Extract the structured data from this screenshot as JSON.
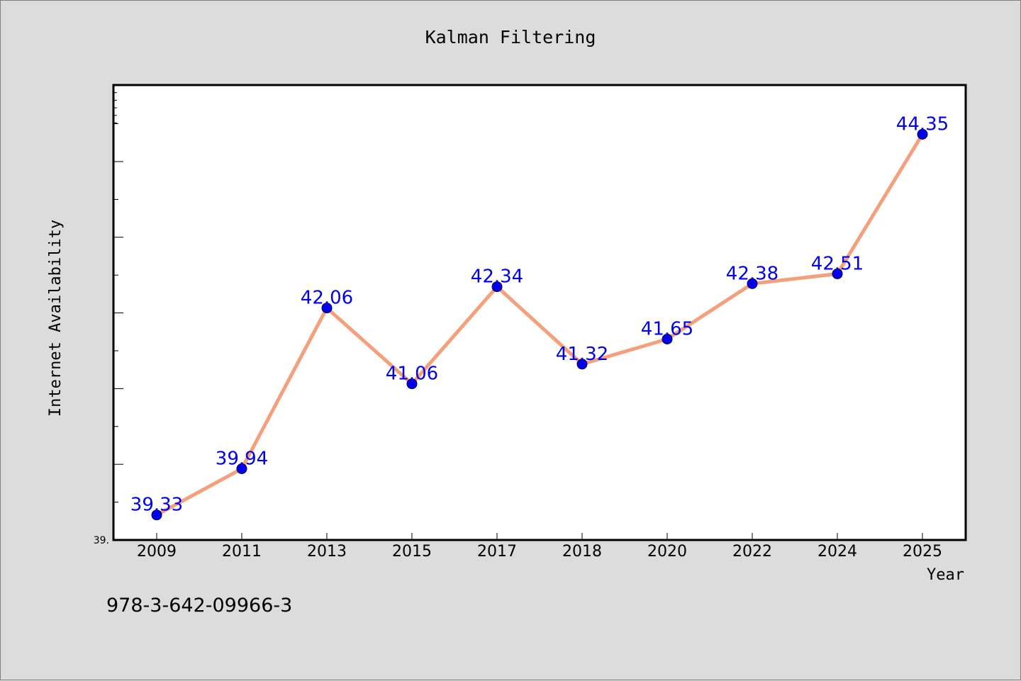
{
  "chart_data": {
    "type": "line",
    "title": "Kalman Filtering",
    "xlabel": "Year",
    "ylabel": "Internet Availability",
    "categories": [
      "2009",
      "2011",
      "2013",
      "2015",
      "2017",
      "2018",
      "2020",
      "2022",
      "2024",
      "2025"
    ],
    "series": [
      {
        "values": [
          39.33,
          39.94,
          42.06,
          41.06,
          42.34,
          41.32,
          41.65,
          42.38,
          42.51,
          44.35
        ],
        "line_color": "#f4a07c",
        "marker_color": "#0000ee"
      }
    ],
    "data_labels": [
      "39.33",
      "39.94",
      "42.06",
      "41.06",
      "42.34",
      "41.32",
      "41.65",
      "42.38",
      "42.51",
      "44.35"
    ],
    "ytick_label": "39.",
    "ylim": [
      39.0,
      45.0
    ],
    "grid": false,
    "label_color": "#0000ee"
  },
  "annotation": "978-3-642-09966-3"
}
